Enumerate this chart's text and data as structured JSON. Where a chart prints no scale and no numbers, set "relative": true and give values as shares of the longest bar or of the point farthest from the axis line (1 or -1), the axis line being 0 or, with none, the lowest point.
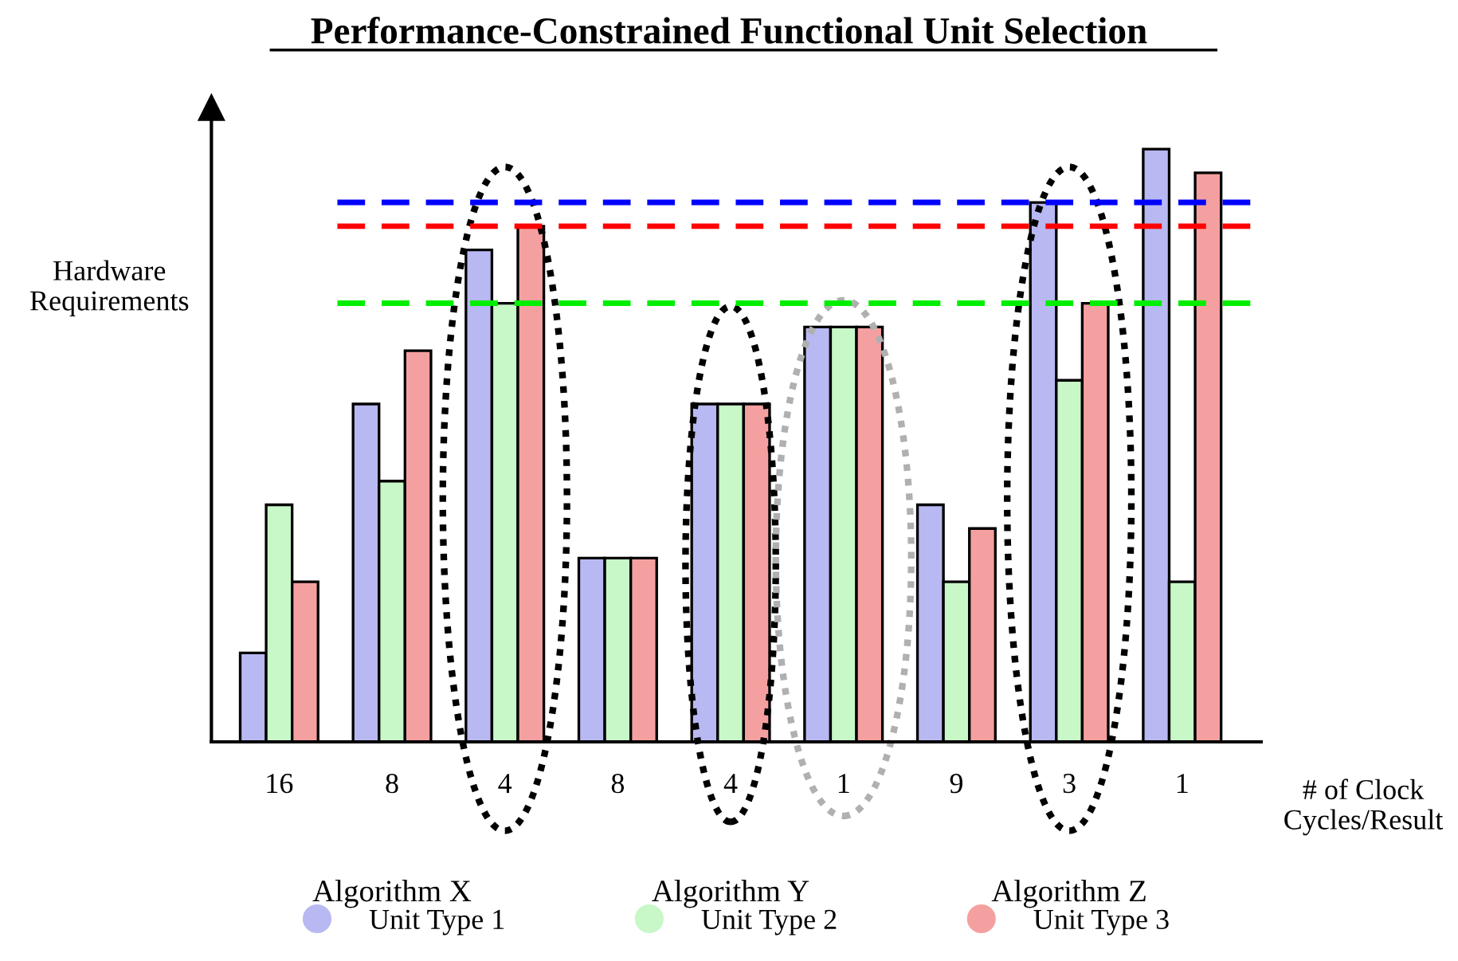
{
  "chart_data": {
    "type": "bar",
    "title": "Performance-Constrained Functional Unit Selection",
    "ylabel": "Hardware\nRequirements",
    "xlabel": "# of Clock\nCycles/Result",
    "relative": true,
    "categories": [
      "16",
      "8",
      "4",
      "8",
      "4",
      "1",
      "9",
      "3",
      "1"
    ],
    "series": [
      {
        "name": "Unit Type 1",
        "color": "#b8b8f2",
        "values": [
          0.15,
          0.57,
          0.83,
          0.31,
          0.57,
          0.7,
          0.4,
          0.91,
          1
        ]
      },
      {
        "name": "Unit Type 2",
        "color": "#c8f7c8",
        "values": [
          0.4,
          0.44,
          0.74,
          0.31,
          0.57,
          0.7,
          0.27,
          0.61,
          0.27
        ]
      },
      {
        "name": "Unit Type 3",
        "color": "#f5a0a0",
        "values": [
          0.27,
          0.66,
          0.87,
          0.31,
          0.57,
          0.7,
          0.36,
          0.74,
          0.96
        ]
      }
    ],
    "ref_lines": [
      {
        "axis": "y",
        "value": 0.91,
        "color": "#0000ff",
        "line_style": "dashed"
      },
      {
        "axis": "y",
        "value": 0.87,
        "color": "#ff0000",
        "line_style": "dashed"
      },
      {
        "axis": "y",
        "value": 0.74,
        "color": "#00ee00",
        "line_style": "dashed"
      }
    ],
    "annotations": [
      "Algorithm X",
      "Algorithm Y",
      "Algorithm Z"
    ],
    "legend": "bottom",
    "grid": false
  }
}
